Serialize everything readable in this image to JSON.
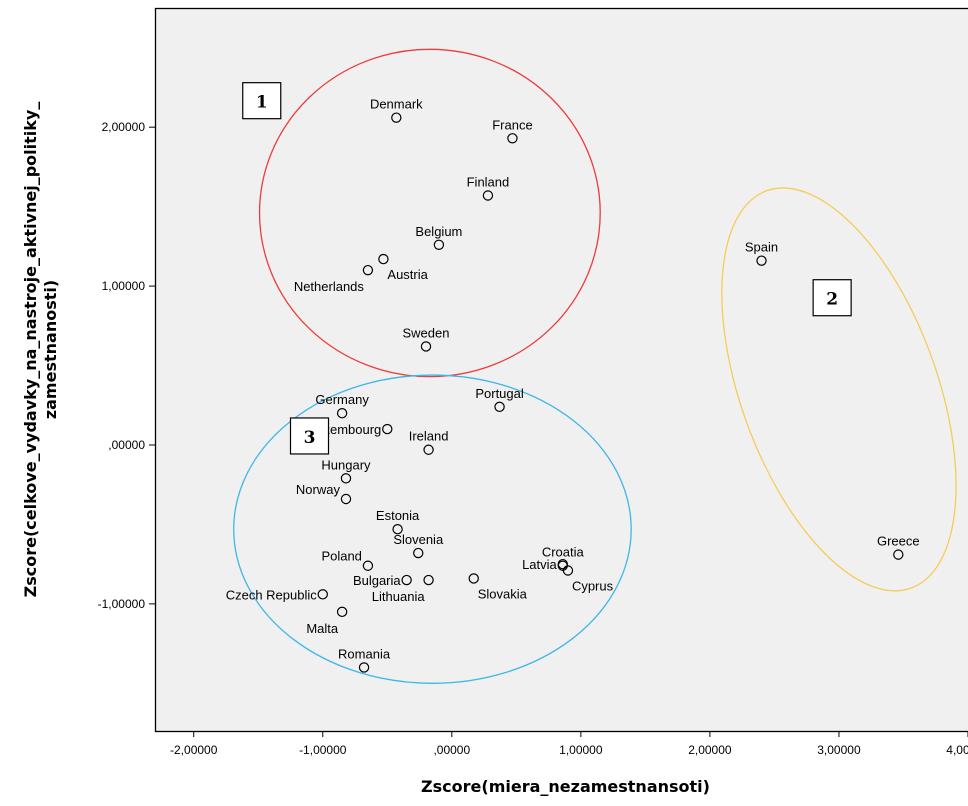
{
  "chart_data": {
    "type": "scatter",
    "xlabel": "Zscore(miera_nezamestnansoti)",
    "ylabel_lines": [
      "Zscore(celkove_vydavky_na_nastroje_aktivnej_politiky_",
      "zamestnanosti)"
    ],
    "xlim": [
      -2.3,
      4.0
    ],
    "ylim": [
      -1.8,
      2.75
    ],
    "x_ticks": [
      {
        "value": -2,
        "label": "-2,00000"
      },
      {
        "value": -1,
        "label": "-1,00000"
      },
      {
        "value": 0,
        "label": ",00000"
      },
      {
        "value": 1,
        "label": "1,00000"
      },
      {
        "value": 2,
        "label": "2,00000"
      },
      {
        "value": 3,
        "label": "3,00000"
      },
      {
        "value": 4,
        "label": "4,00000"
      }
    ],
    "y_ticks": [
      {
        "value": 2,
        "label": "2,00000"
      },
      {
        "value": 1,
        "label": "1,00000"
      },
      {
        "value": 0,
        "label": ",00000"
      },
      {
        "value": -1,
        "label": "-1,00000"
      }
    ],
    "grid": false,
    "colors": {
      "plot_bg": "#f0f0f0",
      "frame": "#000000",
      "marker": "#000000",
      "cluster1": "#ee3b3b",
      "cluster2": "#f5cc5a",
      "cluster3": "#3eb7e8"
    },
    "points": [
      {
        "name": "Denmark",
        "x": -0.43,
        "y": 2.06,
        "label_pos": "above"
      },
      {
        "name": "France",
        "x": 0.47,
        "y": 1.93,
        "label_pos": "above"
      },
      {
        "name": "Finland",
        "x": 0.28,
        "y": 1.57,
        "label_pos": "above"
      },
      {
        "name": "Belgium",
        "x": -0.1,
        "y": 1.26,
        "label_pos": "above"
      },
      {
        "name": "Austria",
        "x": -0.53,
        "y": 1.17,
        "label_pos": "below-right"
      },
      {
        "name": "Netherlands",
        "x": -0.65,
        "y": 1.1,
        "label_pos": "below-left"
      },
      {
        "name": "Sweden",
        "x": -0.2,
        "y": 0.62,
        "label_pos": "above"
      },
      {
        "name": "Spain",
        "x": 2.4,
        "y": 1.16,
        "label_pos": "above"
      },
      {
        "name": "Greece",
        "x": 3.46,
        "y": -0.69,
        "label_pos": "above"
      },
      {
        "name": "Portugal",
        "x": 0.37,
        "y": 0.24,
        "label_pos": "above"
      },
      {
        "name": "Germany",
        "x": -0.85,
        "y": 0.2,
        "label_pos": "above"
      },
      {
        "name": "Luxembourg",
        "x": -0.5,
        "y": 0.1,
        "label_pos": "left"
      },
      {
        "name": "Ireland",
        "x": -0.18,
        "y": -0.03,
        "label_pos": "above"
      },
      {
        "name": "Hungary",
        "x": -0.82,
        "y": -0.21,
        "label_pos": "above"
      },
      {
        "name": "Norway",
        "x": -0.82,
        "y": -0.34,
        "label_pos": "above-left"
      },
      {
        "name": "Estonia",
        "x": -0.42,
        "y": -0.53,
        "label_pos": "above"
      },
      {
        "name": "Slovenia",
        "x": -0.26,
        "y": -0.68,
        "label_pos": "above"
      },
      {
        "name": "Poland",
        "x": -0.65,
        "y": -0.76,
        "label_pos": "above-left"
      },
      {
        "name": "Bulgaria",
        "x": -0.35,
        "y": -0.85,
        "label_pos": "left"
      },
      {
        "name": "Lithuania",
        "x": -0.18,
        "y": -0.85,
        "label_pos": "below-left"
      },
      {
        "name": "Slovakia",
        "x": 0.17,
        "y": -0.84,
        "label_pos": "below-right"
      },
      {
        "name": "Latvia",
        "x": 0.86,
        "y": -0.75,
        "label_pos": "left"
      },
      {
        "name": "Croatia",
        "x": 0.86,
        "y": -0.76,
        "label_pos": "above"
      },
      {
        "name": "Cyprus",
        "x": 0.9,
        "y": -0.79,
        "label_pos": "below-right"
      },
      {
        "name": "Czech Republic",
        "x": -1.0,
        "y": -0.94,
        "label_pos": "left"
      },
      {
        "name": "Malta",
        "x": -0.85,
        "y": -1.05,
        "label_pos": "below-left"
      },
      {
        "name": "Romania",
        "x": -0.68,
        "y": -1.4,
        "label_pos": "above"
      }
    ],
    "clusters": [
      {
        "label": "1",
        "color_key": "cluster1",
        "cx": -0.17,
        "cy": 1.46,
        "rx": 1.32,
        "ry": 1.03,
        "rotate": 0,
        "box_x": -1.62,
        "box_y": 2.28
      },
      {
        "label": "2",
        "color_key": "cluster2",
        "cx": 3.0,
        "cy": 0.35,
        "rx": 0.76,
        "ry": 1.33,
        "rotate": -20,
        "box_x": 2.8,
        "box_y": 1.04
      },
      {
        "label": "3",
        "color_key": "cluster3",
        "cx": -0.15,
        "cy": -0.53,
        "rx": 1.54,
        "ry": 0.97,
        "rotate": 0,
        "box_x": -1.25,
        "box_y": 0.17
      }
    ]
  }
}
